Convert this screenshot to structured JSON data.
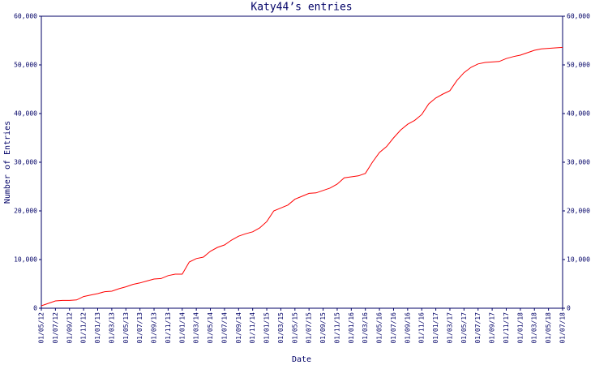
{
  "chart_data": {
    "type": "line",
    "title": "Katy44’s entries",
    "x_label": "Date",
    "y_label": "Number of Entries",
    "color": "#ff0000",
    "categories": [
      "01/05/12",
      null,
      "01/07/12",
      null,
      "01/09/12",
      null,
      "01/11/12",
      null,
      "01/01/13",
      null,
      "01/03/13",
      null,
      "01/05/13",
      null,
      "01/07/13",
      null,
      "01/09/13",
      null,
      "01/11/13",
      null,
      "01/01/14",
      null,
      "01/03/14",
      null,
      "01/05/14",
      null,
      "01/07/14",
      null,
      "01/09/14",
      null,
      "01/11/14",
      null,
      "01/01/15",
      null,
      "01/03/15",
      null,
      "01/05/15",
      null,
      "01/07/15",
      null,
      "01/09/15",
      null,
      "01/11/15",
      null,
      "01/01/16",
      null,
      "01/03/16",
      null,
      "01/05/16",
      null,
      "01/07/16",
      null,
      "01/09/16",
      null,
      "01/11/16",
      null,
      "01/01/17",
      null,
      "01/03/17",
      null,
      "01/05/17",
      null,
      "01/07/17",
      null,
      "01/09/17",
      null,
      "01/11/17",
      null,
      "01/01/18",
      null,
      "01/03/18",
      null,
      "01/05/18",
      null,
      "01/07/18"
    ],
    "values": [
      500,
      1000,
      1500,
      1600,
      1600,
      1700,
      2400,
      2700,
      3000,
      3400,
      3500,
      4000,
      4400,
      4900,
      5200,
      5600,
      6000,
      6100,
      6700,
      7000,
      7000,
      9500,
      10200,
      10500,
      11700,
      12500,
      13000,
      14000,
      14800,
      15300,
      15700,
      16500,
      17800,
      20000,
      20600,
      21200,
      22400,
      23000,
      23600,
      23700,
      24200,
      24700,
      25500,
      26800,
      27000,
      27200,
      27700,
      30000,
      32000,
      33200,
      35000,
      36600,
      37800,
      38600,
      39800,
      42000,
      43200,
      44000,
      44700,
      46800,
      48400,
      49500,
      50200,
      50500,
      50600,
      50700,
      51300,
      51700,
      52000,
      52500,
      53000,
      53300,
      53400,
      53500,
      53600
    ],
    "ylim": [
      0,
      60000
    ],
    "yticks": [
      0,
      {
        "value": 10000,
        "label": "10,000"
      },
      {
        "value": 20000,
        "label": "20,000"
      },
      {
        "value": 30000,
        "label": "30,000"
      },
      {
        "value": 40000,
        "label": "40,000"
      },
      {
        "value": 50000,
        "label": "50,000"
      },
      {
        "value": 60000,
        "label": "60,000"
      }
    ]
  }
}
